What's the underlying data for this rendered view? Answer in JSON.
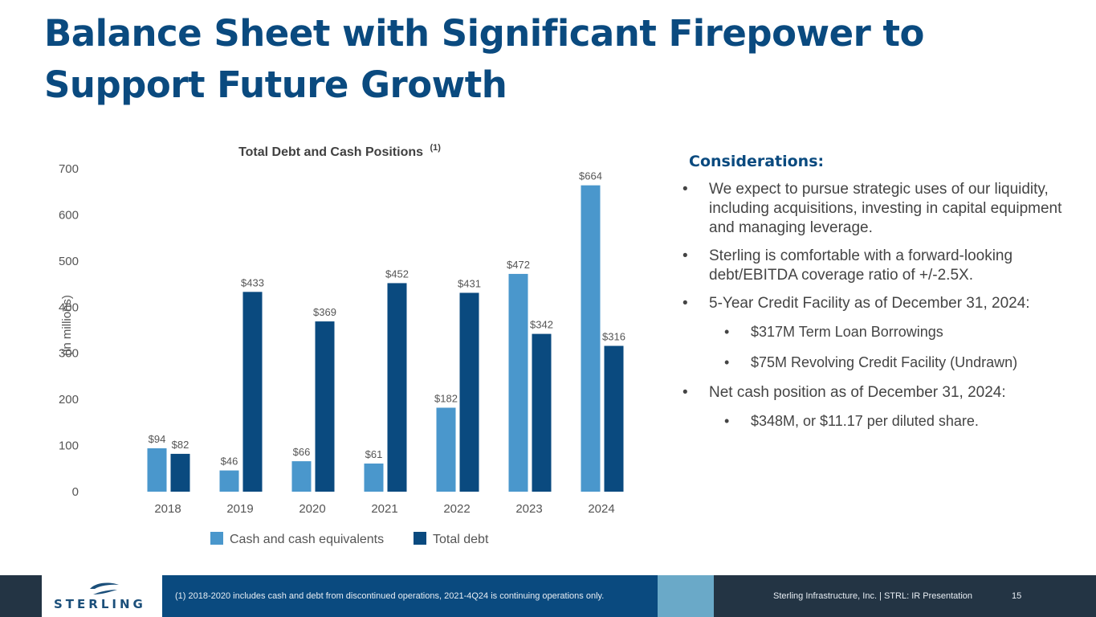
{
  "title": {
    "line1": "Balance Sheet with Significant Firepower to",
    "line2": "Support Future Growth"
  },
  "colors": {
    "title": "#0a4a7f",
    "cash_bar": "#4a97cc",
    "debt_bar": "#0a4a7f",
    "footer_dark": "#233444",
    "footer_blue": "#0a4a7f",
    "footer_accent": "#6aa9c8"
  },
  "chart_data": {
    "type": "bar",
    "title": "Total Debt and Cash Positions",
    "title_superscript": "(1)",
    "ylabel": "(in millions)",
    "xlabel": "",
    "ylim": [
      0,
      700
    ],
    "yticks": [
      0,
      100,
      200,
      300,
      400,
      500,
      600,
      700
    ],
    "categories": [
      "2018",
      "2019",
      "2020",
      "2021",
      "2022",
      "2023",
      "2024"
    ],
    "series": [
      {
        "name": "Cash and cash equivalents",
        "values": [
          94,
          46,
          66,
          61,
          182,
          472,
          664
        ],
        "labels": [
          "$94",
          "$46",
          "$66",
          "$61",
          "$182",
          "$472",
          "$664"
        ],
        "color": "#4a97cc"
      },
      {
        "name": "Total debt",
        "values": [
          82,
          433,
          369,
          452,
          431,
          342,
          316
        ],
        "labels": [
          "$82",
          "$433",
          "$369",
          "$452",
          "$431",
          "$342",
          "$316"
        ],
        "color": "#0a4a7f"
      }
    ],
    "legend": "bottom-center",
    "grid": false
  },
  "considerations": {
    "heading": "Considerations:",
    "items": [
      {
        "level": 1,
        "text": "We expect to pursue strategic uses of our liquidity, including acquisitions, investing in capital equipment and managing leverage."
      },
      {
        "level": 1,
        "text": "Sterling is comfortable with a forward-looking debt/EBITDA coverage ratio of +/-2.5X."
      },
      {
        "level": 1,
        "text": "5-Year Credit Facility as of December 31, 2024:"
      },
      {
        "level": 2,
        "text": "$317M Term Loan Borrowings"
      },
      {
        "level": 2,
        "text": "$75M Revolving Credit Facility (Undrawn)"
      },
      {
        "level": 1,
        "text": "Net cash position as of December 31, 2024:"
      },
      {
        "level": 2,
        "text": "$348M, or $11.17 per diluted share."
      }
    ],
    "bullet_glyph": "•"
  },
  "footer": {
    "logo_text": "STERLING",
    "footnote": "(1)  2018-2020 includes cash and debt from discontinued operations, 2021-4Q24 is continuing operations only.",
    "company": "Sterling Infrastructure, Inc. | STRL:  IR Presentation",
    "page": "15"
  }
}
